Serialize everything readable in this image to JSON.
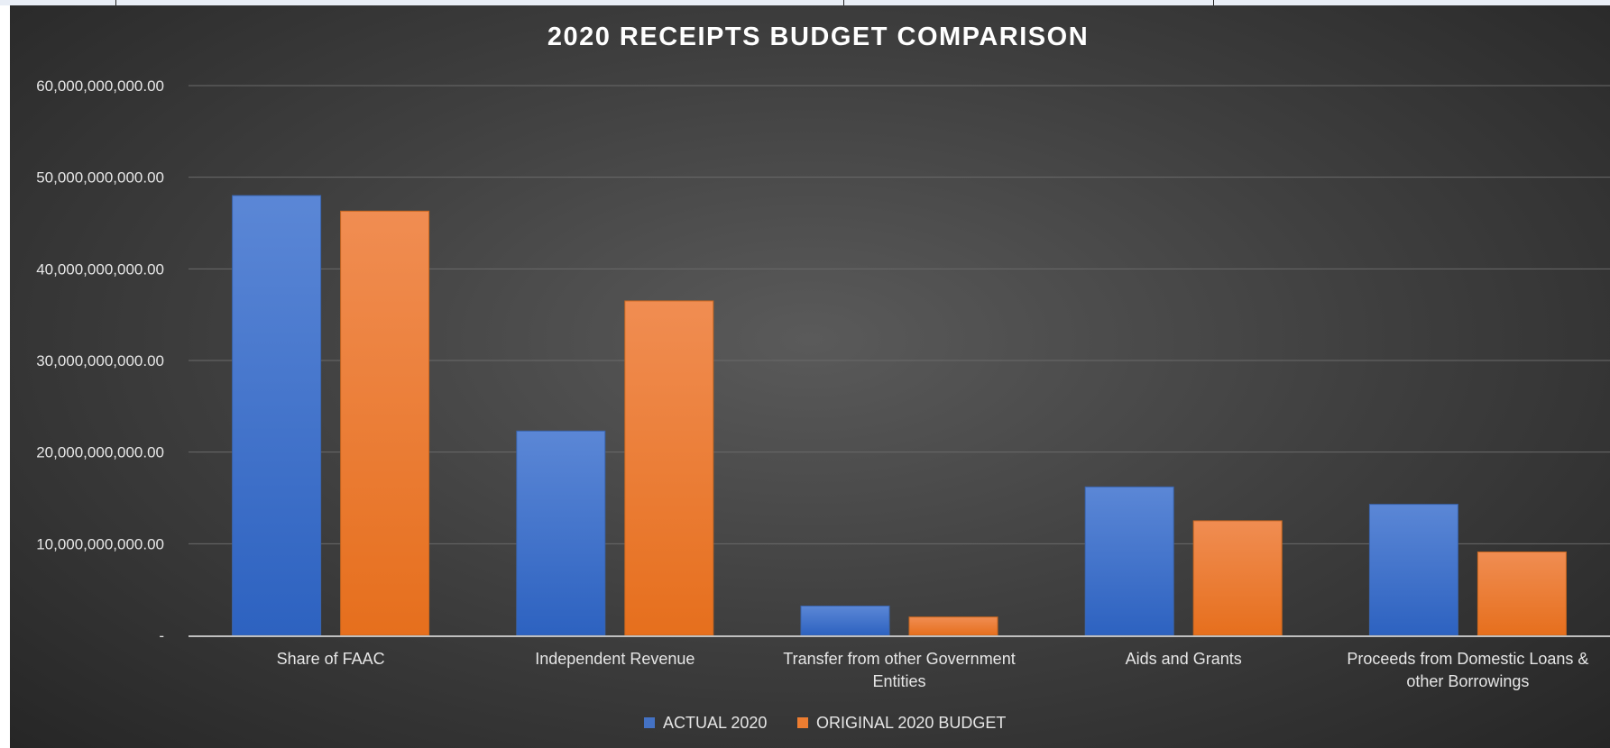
{
  "chart_data": {
    "type": "bar",
    "title": "2020 RECEIPTS BUDGET COMPARISON",
    "xlabel": "",
    "ylabel": "",
    "ylim": [
      0,
      60000000000
    ],
    "yticks": [
      0,
      10000000000,
      20000000000,
      30000000000,
      40000000000,
      50000000000,
      60000000000
    ],
    "ytick_labels": [
      "-",
      "10,000,000,000.00",
      "20,000,000,000.00",
      "30,000,000,000.00",
      "40,000,000,000.00",
      "50,000,000,000.00",
      "60,000,000,000.00"
    ],
    "categories": [
      [
        "Share of FAAC"
      ],
      [
        "Independent Revenue"
      ],
      [
        "Transfer from other Government",
        "Entities"
      ],
      [
        "Aids and Grants"
      ],
      [
        "Proceeds from Domestic Loans &",
        "other Borrowings"
      ]
    ],
    "series": [
      {
        "name": "ACTUAL 2020",
        "color": "#4472c4",
        "values": [
          48000000000,
          22300000000,
          3200000000,
          16200000000,
          14300000000
        ]
      },
      {
        "name": "ORIGINAL 2020 BUDGET",
        "color": "#ed7d31",
        "values": [
          46300000000,
          36500000000,
          2000000000,
          12500000000,
          9100000000
        ]
      }
    ],
    "grid": true,
    "legend_position": "bottom"
  }
}
